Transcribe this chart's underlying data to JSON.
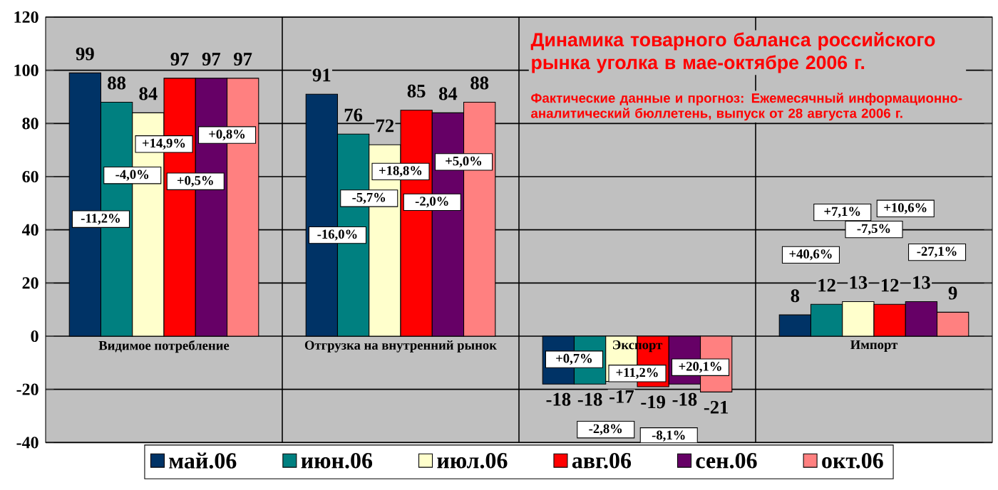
{
  "chart_data": {
    "type": "bar",
    "title": "Динамика товарного баланса российского рынка уголка в мае-октябре 2006 г.",
    "subtitle": "Фактические данные и прогноз: Ежемесячный информационно-аналитический бюллетень, выпуск от 28 августа 2006 г.",
    "categories": [
      "Видимое потребление",
      "Отгрузка на внутренний рынок",
      "Экспорт",
      "Импорт"
    ],
    "series": [
      {
        "name": "май.06",
        "color": "#003366",
        "values": [
          99,
          91,
          -18,
          8
        ]
      },
      {
        "name": "июн.06",
        "color": "#008080",
        "values": [
          88,
          76,
          -18,
          12
        ]
      },
      {
        "name": "июл.06",
        "color": "#ffffcc",
        "values": [
          84,
          72,
          -17,
          13
        ]
      },
      {
        "name": "авг.06",
        "color": "#ff0000",
        "values": [
          97,
          85,
          -19,
          12
        ]
      },
      {
        "name": "сен.06",
        "color": "#660066",
        "values": [
          97,
          84,
          -18,
          13
        ]
      },
      {
        "name": "окт.06",
        "color": "#ff8080",
        "values": [
          97,
          88,
          -21,
          9
        ]
      }
    ],
    "ylim": [
      -40,
      120
    ],
    "yticks": [
      -40,
      -20,
      0,
      20,
      40,
      60,
      80,
      100,
      120
    ],
    "grid": true,
    "legend": "bottom",
    "data_labels": true,
    "annotations": [
      "-11,2%",
      "-4,0%",
      "+14,9%",
      "+0,5%",
      "+0,8%",
      "-16,0%",
      "-5,7%",
      "+18,8%",
      "-2,0%",
      "+5,0%",
      "+0,7%",
      "-2,8%",
      "+11,2%",
      "-8,1%",
      "+20,1%",
      "+40,6%",
      "+7,1%",
      "-7,5%",
      "+10,6%",
      "-27,1%"
    ]
  }
}
